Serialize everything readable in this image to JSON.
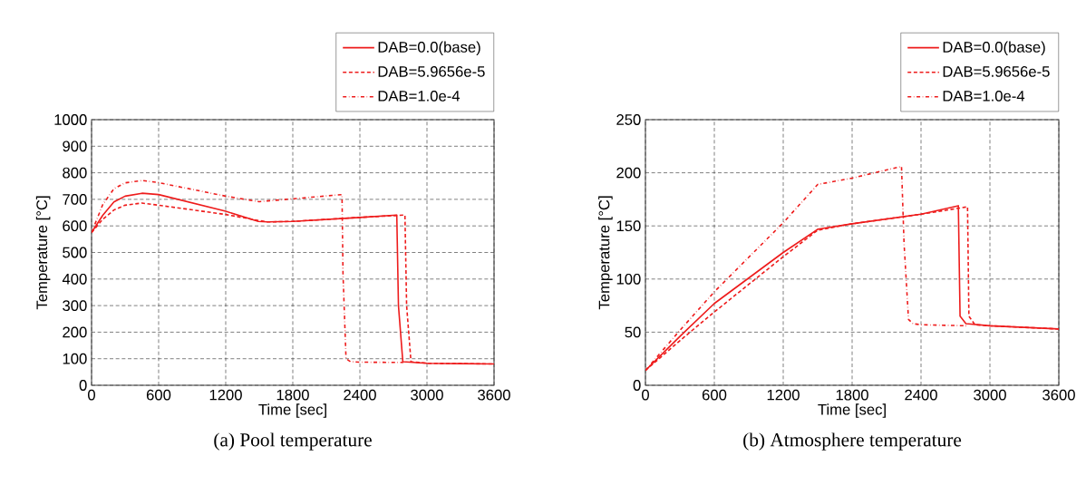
{
  "chart_data": [
    {
      "type": "line",
      "title": "(a) Pool temperature",
      "xlabel": "Time [sec]",
      "ylabel": "Temperature [°C]",
      "xlim": [
        0,
        3600
      ],
      "ylim": [
        0,
        1000
      ],
      "xticks": [
        0,
        600,
        1200,
        1800,
        2400,
        3000,
        3600
      ],
      "yticks": [
        0,
        100,
        200,
        300,
        400,
        500,
        600,
        700,
        800,
        900,
        1000
      ],
      "grid": true,
      "legend": "top right",
      "series": [
        {
          "name": "DAB=0.0(base)",
          "color": "#ee1c1c",
          "line_style": "solid",
          "x": [
            0,
            100,
            200,
            300,
            451,
            600,
            1200,
            1492,
            1573,
            1800,
            2400,
            2730,
            2745,
            2784,
            3005,
            3600
          ],
          "values": [
            575,
            640,
            690,
            712,
            723,
            718,
            655,
            617,
            615,
            617,
            632,
            641,
            300,
            89,
            83,
            80
          ]
        },
        {
          "name": "DAB=5.9656e-5",
          "color": "#ee1c1c",
          "line_style": "dashed",
          "x": [
            0,
            100,
            200,
            300,
            450,
            600,
            1200,
            1500,
            1573,
            1800,
            2400,
            2803,
            2818,
            2857,
            3005,
            3600
          ],
          "values": [
            575,
            625,
            660,
            678,
            686,
            678,
            643,
            620,
            615,
            617,
            632,
            641,
            300,
            89,
            83,
            80
          ]
        },
        {
          "name": "DAB=1.0e-4",
          "color": "#ee1c1c",
          "line_style": "dashdot",
          "x": [
            0,
            100,
            200,
            300,
            451,
            600,
            1200,
            1500,
            1573,
            1800,
            2240,
            2249,
            2276,
            2316,
            2400,
            2789
          ],
          "values": [
            575,
            680,
            740,
            762,
            771,
            763,
            712,
            691,
            694,
            702,
            718,
            420,
            100,
            89,
            87,
            86
          ]
        }
      ]
    },
    {
      "type": "line",
      "title": "(b) Atmosphere temperature",
      "xlabel": "Time [sec]",
      "ylabel": "Temperature [°C]",
      "xlim": [
        0,
        3600
      ],
      "ylim": [
        0,
        250
      ],
      "xticks": [
        0,
        600,
        1200,
        1800,
        2400,
        3000,
        3600
      ],
      "yticks": [
        0,
        50,
        100,
        150,
        200,
        250
      ],
      "grid": true,
      "legend": "top right",
      "series": [
        {
          "name": "DAB=0.0(base)",
          "color": "#ee1c1c",
          "line_style": "solid",
          "x": [
            0,
            300,
            600,
            1200,
            1503,
            1800,
            2400,
            2725,
            2740,
            2791,
            3000,
            3600
          ],
          "values": [
            14,
            46,
            77,
            125,
            147,
            152,
            161,
            169,
            65,
            58,
            56,
            53
          ]
        },
        {
          "name": "DAB=5.9656e-5",
          "color": "#ee1c1c",
          "line_style": "dashed",
          "x": [
            0,
            300,
            600,
            1200,
            1500,
            1800,
            2400,
            2805,
            2817,
            2870,
            3000,
            3600
          ],
          "values": [
            14,
            42,
            69,
            121,
            146,
            152,
            161,
            168,
            65,
            57,
            56,
            53
          ]
        },
        {
          "name": "DAB=1.0e-4",
          "color": "#ee1c1c",
          "line_style": "dashdot",
          "x": [
            0,
            294,
            600,
            1200,
            1500,
            1800,
            2230,
            2252,
            2291,
            2330,
            2400,
            2800
          ],
          "values": [
            14,
            51,
            88,
            153,
            189,
            195,
            206,
            134,
            62,
            58,
            57,
            56
          ]
        }
      ]
    }
  ]
}
